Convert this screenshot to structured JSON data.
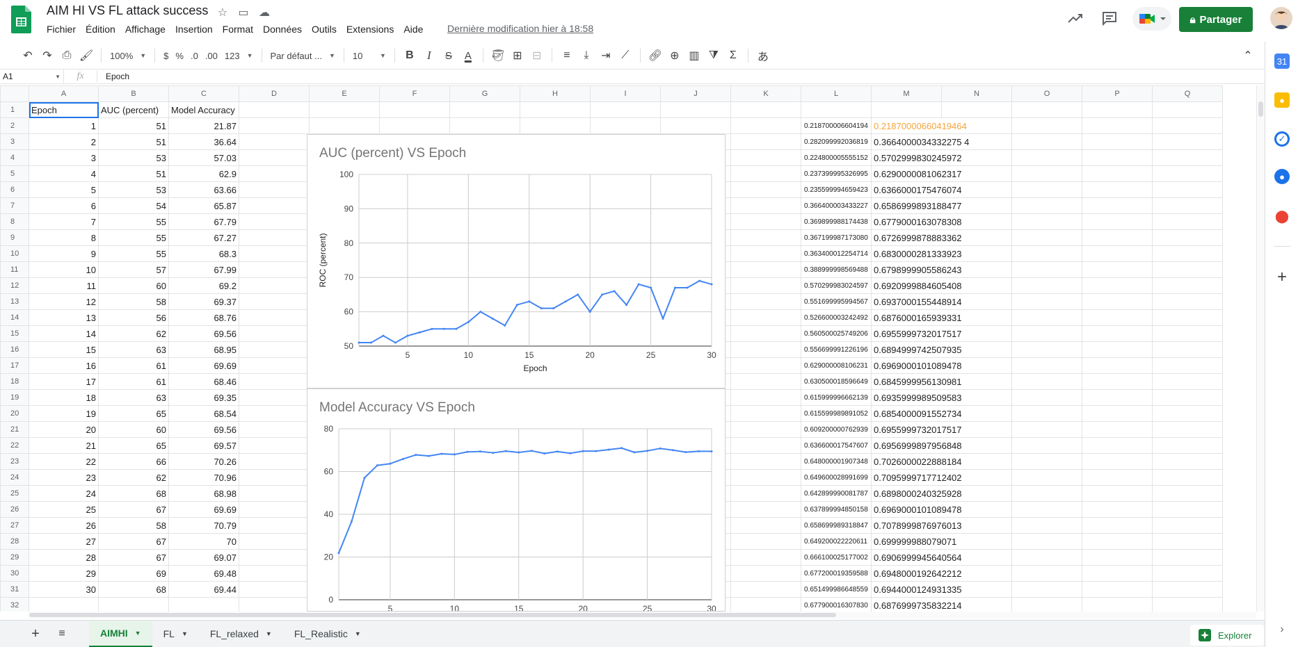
{
  "doc": {
    "title": "AIM HI VS FL attack success",
    "last_edit": "Dernière modification hier à 18:58"
  },
  "menu": [
    "Fichier",
    "Édition",
    "Affichage",
    "Insertion",
    "Format",
    "Données",
    "Outils",
    "Extensions",
    "Aide"
  ],
  "share_label": "Partager",
  "toolbar": {
    "zoom": "100%",
    "currency": "$",
    "percent": "%",
    "dec_less": ".0",
    "dec_more": ".00",
    "more_formats": "123",
    "font": "Par défaut ...",
    "font_size": "10",
    "bold": "B",
    "italic": "I",
    "strike": "S",
    "text_color": "A",
    "input_tools": "あ"
  },
  "formula_bar": {
    "cell_ref": "A1",
    "fx": "fx",
    "value": "Epoch"
  },
  "grid": {
    "column_letters": [
      "A",
      "B",
      "C",
      "D",
      "E",
      "F",
      "G",
      "H",
      "I",
      "J",
      "K",
      "L",
      "M",
      "N",
      "O",
      "P",
      "Q"
    ],
    "headers": [
      "Epoch",
      "AUC (percent)",
      "Model Accuracy"
    ],
    "rows": [
      [
        "1",
        "51",
        "21.87",
        "0.218700006604194",
        "0.21870000660419464"
      ],
      [
        "2",
        "51",
        "36.64",
        "0.282099992036819",
        "0.3664000034332275 4"
      ],
      [
        "3",
        "53",
        "57.03",
        "0.224800005555152",
        "0.5702999830245972"
      ],
      [
        "4",
        "51",
        "62.9",
        "0.237399995326995",
        "0.6290000081062317"
      ],
      [
        "5",
        "53",
        "63.66",
        "0.235599994659423",
        "0.6366000175476074"
      ],
      [
        "6",
        "54",
        "65.87",
        "0.366400003433227",
        "0.6586999893188477"
      ],
      [
        "7",
        "55",
        "67.79",
        "0.369899988174438",
        "0.6779000163078308"
      ],
      [
        "8",
        "55",
        "67.27",
        "0.367199987173080",
        "0.6726999878883362"
      ],
      [
        "9",
        "55",
        "68.3",
        "0.363400012254714",
        "0.6830000281333923"
      ],
      [
        "10",
        "57",
        "67.99",
        "0.388999998569488",
        "0.6798999905586243"
      ],
      [
        "11",
        "60",
        "69.2",
        "0.570299983024597",
        "0.6920999884605408"
      ],
      [
        "12",
        "58",
        "69.37",
        "0.551699995994567",
        "0.6937000155448914"
      ],
      [
        "13",
        "56",
        "68.76",
        "0.526600003242492",
        "0.6876000165939331"
      ],
      [
        "14",
        "62",
        "69.56",
        "0.560500025749206",
        "0.6955999732017517"
      ],
      [
        "15",
        "63",
        "68.95",
        "0.556699991226196",
        "0.6894999742507935"
      ],
      [
        "16",
        "61",
        "69.69",
        "0.629000008106231",
        "0.6969000101089478"
      ],
      [
        "17",
        "61",
        "68.46",
        "0.630500018596649",
        "0.6845999956130981"
      ],
      [
        "18",
        "63",
        "69.35",
        "0.615999996662139",
        "0.6935999989509583"
      ],
      [
        "19",
        "65",
        "68.54",
        "0.615599989891052",
        "0.6854000091552734"
      ],
      [
        "20",
        "60",
        "69.56",
        "0.609200000762939",
        "0.6955999732017517"
      ],
      [
        "21",
        "65",
        "69.57",
        "0.636600017547607",
        "0.6956999897956848"
      ],
      [
        "22",
        "66",
        "70.26",
        "0.648000001907348",
        "0.7026000022888184"
      ],
      [
        "23",
        "62",
        "70.96",
        "0.649600028991699",
        "0.7095999717712402"
      ],
      [
        "24",
        "68",
        "68.98",
        "0.642899990081787",
        "0.6898000240325928"
      ],
      [
        "25",
        "67",
        "69.69",
        "0.637899994850158",
        "0.6969000101089478"
      ],
      [
        "26",
        "58",
        "70.79",
        "0.658699989318847",
        "0.7078999876976013"
      ],
      [
        "27",
        "67",
        "70",
        "0.649200022220611",
        "0.699999988079071"
      ],
      [
        "28",
        "67",
        "69.07",
        "0.666100025177002",
        "0.6906999945640564"
      ],
      [
        "29",
        "69",
        "69.48",
        "0.677200019359588",
        "0.6948000192642212"
      ],
      [
        "30",
        "68",
        "69.44",
        "0.651499986648559",
        "0.6944000124931335"
      ],
      [
        "",
        "",
        "",
        "0.677900016307830",
        "0.6876999735832214"
      ]
    ]
  },
  "chart_data": [
    {
      "type": "line",
      "title": "AUC (percent) VS Epoch",
      "xlabel": "Epoch",
      "ylabel": "ROC (percent)",
      "x": [
        1,
        2,
        3,
        4,
        5,
        6,
        7,
        8,
        9,
        10,
        11,
        12,
        13,
        14,
        15,
        16,
        17,
        18,
        19,
        20,
        21,
        22,
        23,
        24,
        25,
        26,
        27,
        28,
        29,
        30
      ],
      "series": [
        {
          "values": [
            51,
            51,
            53,
            51,
            53,
            54,
            55,
            55,
            55,
            57,
            60,
            58,
            56,
            62,
            63,
            61,
            61,
            63,
            65,
            60,
            65,
            66,
            62,
            68,
            67,
            58,
            67,
            67,
            69,
            68
          ]
        }
      ],
      "xticks": [
        5,
        10,
        15,
        20,
        25,
        30
      ],
      "yticks": [
        50,
        60,
        70,
        80,
        90,
        100
      ],
      "xlim": [
        1,
        30
      ],
      "ylim": [
        50,
        100
      ],
      "grid": true,
      "color": "#4285f4"
    },
    {
      "type": "line",
      "title": "Model Accuracy VS Epoch",
      "xlabel": "",
      "ylabel": "",
      "x": [
        1,
        2,
        3,
        4,
        5,
        6,
        7,
        8,
        9,
        10,
        11,
        12,
        13,
        14,
        15,
        16,
        17,
        18,
        19,
        20,
        21,
        22,
        23,
        24,
        25,
        26,
        27,
        28,
        29,
        30
      ],
      "series": [
        {
          "values": [
            21.87,
            36.64,
            57.03,
            62.9,
            63.66,
            65.87,
            67.79,
            67.27,
            68.3,
            67.99,
            69.2,
            69.37,
            68.76,
            69.56,
            68.95,
            69.69,
            68.46,
            69.35,
            68.54,
            69.56,
            69.57,
            70.26,
            70.96,
            68.98,
            69.69,
            70.79,
            70,
            69.07,
            69.48,
            69.44
          ]
        }
      ],
      "xticks": [
        5,
        10,
        15,
        20,
        25,
        30
      ],
      "yticks": [
        0,
        20,
        40,
        60,
        80
      ],
      "xlim": [
        1,
        30
      ],
      "ylim": [
        0,
        80
      ],
      "grid": true,
      "color": "#4285f4"
    }
  ],
  "tabs": [
    {
      "label": "AIMHI",
      "active": true
    },
    {
      "label": "FL",
      "active": false
    },
    {
      "label": "FL_relaxed",
      "active": false
    },
    {
      "label": "FL_Realistic",
      "active": false
    }
  ],
  "explore_label": "Explorer",
  "colors": {
    "brand_green": "#188038",
    "selection_blue": "#1a73e8",
    "series_blue": "#4285f4",
    "highlight_orange": "#f6a43c"
  }
}
